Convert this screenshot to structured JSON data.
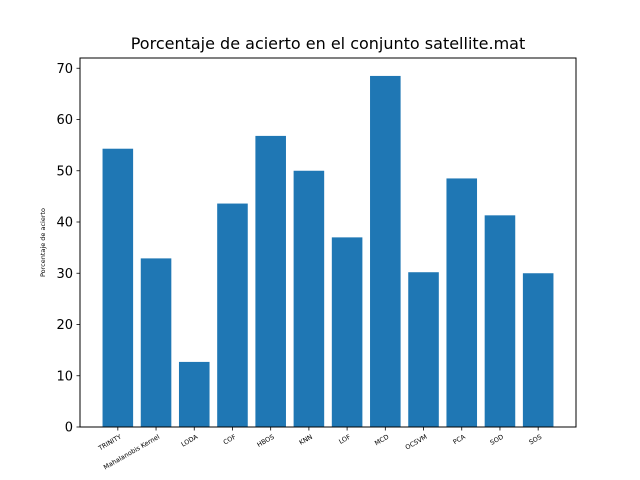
{
  "chart_data": {
    "type": "bar",
    "title": "Porcentaje de acierto en el conjunto satellite.mat",
    "xlabel": "",
    "ylabel": "Porcentaje de acierto",
    "ylim": [
      0,
      72
    ],
    "yticks": [
      0,
      10,
      20,
      30,
      40,
      50,
      60,
      70
    ],
    "grid": false,
    "categories": [
      "TRINITY",
      "Mahalanobis Kernel",
      "LODA",
      "COF",
      "HBOS",
      "KNN",
      "LOF",
      "MCD",
      "OCSVM",
      "PCA",
      "SOD",
      "SOS"
    ],
    "values": [
      54.3,
      32.9,
      12.7,
      43.6,
      56.8,
      50.0,
      37.0,
      68.5,
      30.2,
      48.5,
      41.3,
      30.0
    ],
    "bar_color": "#1f77b4"
  }
}
